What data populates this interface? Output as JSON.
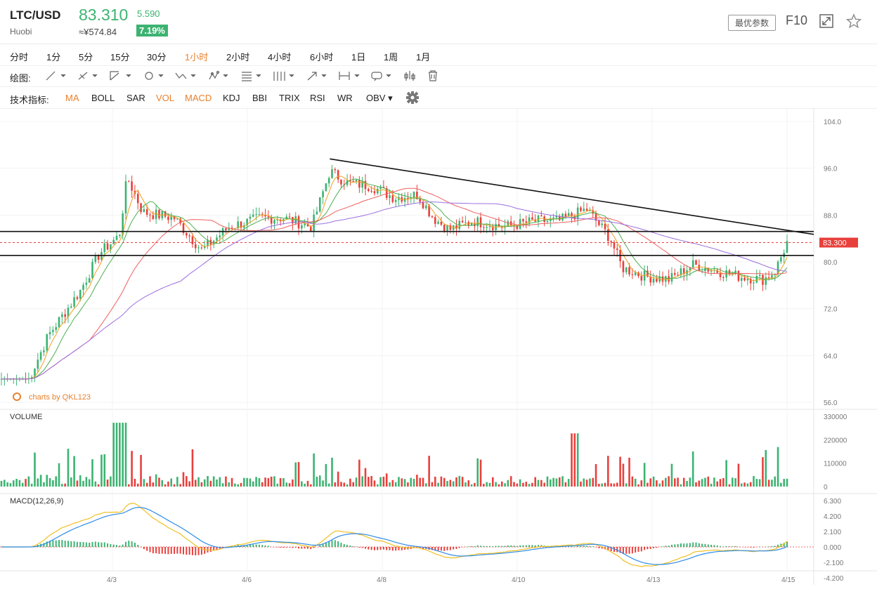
{
  "header": {
    "symbol": "LTC/USD",
    "exchange": "Huobi",
    "price": "83.310",
    "change": "5.590",
    "cny_price": "≈¥574.84",
    "change_pct": "7.19%",
    "params_button": "最优参数",
    "f10": "F10"
  },
  "intervals": [
    "分时",
    "1分",
    "5分",
    "15分",
    "30分",
    "1小时",
    "2小时",
    "4小时",
    "6小时",
    "1日",
    "1周",
    "1月"
  ],
  "active_interval": "1小时",
  "draw_label": "绘图:",
  "indicator_label": "技术指标:",
  "indicators": [
    "MA",
    "BOLL",
    "SAR",
    "VOL",
    "MACD",
    "KDJ",
    "BBI",
    "TRIX",
    "RSI",
    "WR",
    "OBV"
  ],
  "active_indicators": [
    "MA",
    "VOL",
    "MACD"
  ],
  "watermark": "charts by QKL123",
  "colors": {
    "up": "#3cb371",
    "down": "#e8403c",
    "accent": "#e8812d",
    "price_tag": "#e8403c",
    "ma_long": "#9b6fe0"
  },
  "chart_data": [
    {
      "type": "candlestick",
      "ylim": [
        56,
        104
      ],
      "y_ticks": [
        "104.0",
        "96.0",
        "88.0",
        "80.0",
        "72.0",
        "64.0",
        "56.0"
      ],
      "x_ticks": [
        "4/3",
        "4/6",
        "4/8",
        "4/10",
        "4/13",
        "4/15"
      ],
      "last_price_label": "83.300",
      "horizontal_levels": [
        85.2,
        81.1
      ],
      "trendline": {
        "from": [
          0.418,
          97.6
        ],
        "to": [
          1.0,
          84.7
        ]
      },
      "key_points": [
        {
          "x": 0.0,
          "close": 60.0
        },
        {
          "x": 0.035,
          "close": 60.0
        },
        {
          "x": 0.06,
          "close": 67.5
        },
        {
          "x": 0.1,
          "close": 75.0
        },
        {
          "x": 0.125,
          "close": 81.5
        },
        {
          "x": 0.15,
          "close": 84.5
        },
        {
          "x": 0.16,
          "close": 94.5
        },
        {
          "x": 0.18,
          "close": 88.5
        },
        {
          "x": 0.22,
          "close": 87.5
        },
        {
          "x": 0.255,
          "close": 82.0
        },
        {
          "x": 0.29,
          "close": 86.0
        },
        {
          "x": 0.33,
          "close": 87.5
        },
        {
          "x": 0.36,
          "close": 87.5
        },
        {
          "x": 0.395,
          "close": 86.0
        },
        {
          "x": 0.418,
          "close": 95.5
        },
        {
          "x": 0.44,
          "close": 93.5
        },
        {
          "x": 0.47,
          "close": 93.0
        },
        {
          "x": 0.5,
          "close": 91.0
        },
        {
          "x": 0.53,
          "close": 91.5
        },
        {
          "x": 0.55,
          "close": 87.5
        },
        {
          "x": 0.57,
          "close": 85.5
        },
        {
          "x": 0.6,
          "close": 87.0
        },
        {
          "x": 0.64,
          "close": 86.0
        },
        {
          "x": 0.68,
          "close": 87.0
        },
        {
          "x": 0.71,
          "close": 87.0
        },
        {
          "x": 0.745,
          "close": 89.0
        },
        {
          "x": 0.775,
          "close": 84.0
        },
        {
          "x": 0.79,
          "close": 79.0
        },
        {
          "x": 0.82,
          "close": 77.5
        },
        {
          "x": 0.85,
          "close": 77.0
        },
        {
          "x": 0.88,
          "close": 79.5
        },
        {
          "x": 0.91,
          "close": 78.5
        },
        {
          "x": 0.94,
          "close": 77.5
        },
        {
          "x": 0.97,
          "close": 77.0
        },
        {
          "x": 0.985,
          "close": 78.5
        },
        {
          "x": 1.0,
          "close": 83.3
        }
      ]
    },
    {
      "type": "bar",
      "title": "VOLUME",
      "ylim": [
        0,
        330000
      ],
      "y_ticks": [
        "330000",
        "220000",
        "110000",
        "0"
      ]
    },
    {
      "type": "line",
      "title": "MACD(12,26,9)",
      "ylim": [
        -4.2,
        6.3
      ],
      "y_ticks": [
        "6.300",
        "4.200",
        "2.100",
        "0.000",
        "-2.100",
        "-4.200"
      ]
    }
  ]
}
